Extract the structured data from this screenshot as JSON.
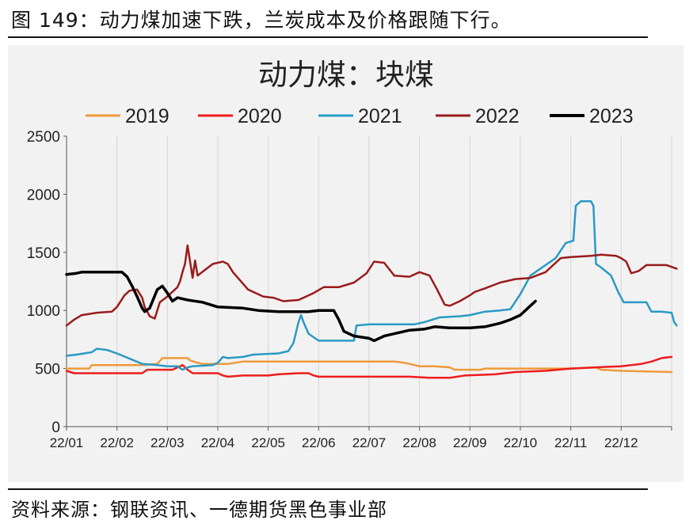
{
  "caption": "图 149：动力煤加速下跌，兰炭成本及价格跟随下行。",
  "source": "资料来源：钢联资讯、一德期货黑色事业部",
  "chart_data": {
    "type": "line",
    "title": "动力煤：块煤",
    "x_ticks": [
      "22/01",
      "22/02",
      "22/03",
      "22/04",
      "22/05",
      "22/06",
      "22/07",
      "22/08",
      "22/09",
      "22/10",
      "22/11",
      "22/12"
    ],
    "x_domain": [
      0,
      12
    ],
    "y_ticks": [
      "0",
      "500",
      "1000",
      "1500",
      "2000",
      "2500"
    ],
    "ylim": [
      0,
      2500
    ],
    "grid": "vertical",
    "legend_position": "top",
    "series": [
      {
        "name": "2019",
        "color": "#ee9a3a",
        "width": 2.5,
        "points": [
          [
            0,
            500
          ],
          [
            0.45,
            500
          ],
          [
            0.5,
            530
          ],
          [
            1.5,
            530
          ],
          [
            1.8,
            540
          ],
          [
            1.9,
            590
          ],
          [
            2.4,
            590
          ],
          [
            2.45,
            570
          ],
          [
            2.6,
            550
          ],
          [
            2.7,
            540
          ],
          [
            3.2,
            540
          ],
          [
            3.5,
            560
          ],
          [
            5.0,
            560
          ],
          [
            6.5,
            560
          ],
          [
            6.7,
            550
          ],
          [
            6.8,
            540
          ],
          [
            7.0,
            520
          ],
          [
            7.3,
            520
          ],
          [
            7.6,
            510
          ],
          [
            7.7,
            490
          ],
          [
            8.2,
            490
          ],
          [
            8.3,
            500
          ],
          [
            9.5,
            500
          ],
          [
            10.0,
            500
          ],
          [
            10.5,
            510
          ],
          [
            10.6,
            490
          ],
          [
            11.0,
            480
          ],
          [
            12.0,
            470
          ]
        ]
      },
      {
        "name": "2020",
        "color": "#ee1c1c",
        "width": 2.5,
        "points": [
          [
            0,
            480
          ],
          [
            0.15,
            460
          ],
          [
            1.0,
            460
          ],
          [
            1.5,
            460
          ],
          [
            1.6,
            490
          ],
          [
            2.1,
            490
          ],
          [
            2.3,
            530
          ],
          [
            2.4,
            490
          ],
          [
            2.5,
            460
          ],
          [
            3.0,
            460
          ],
          [
            3.1,
            440
          ],
          [
            3.2,
            430
          ],
          [
            3.5,
            440
          ],
          [
            4.0,
            440
          ],
          [
            4.2,
            450
          ],
          [
            4.6,
            460
          ],
          [
            4.8,
            460
          ],
          [
            4.9,
            440
          ],
          [
            5.0,
            430
          ],
          [
            6.0,
            430
          ],
          [
            6.5,
            430
          ],
          [
            6.8,
            430
          ],
          [
            7.2,
            420
          ],
          [
            7.6,
            420
          ],
          [
            7.9,
            440
          ],
          [
            8.5,
            450
          ],
          [
            8.9,
            470
          ],
          [
            9.5,
            480
          ],
          [
            10.0,
            500
          ],
          [
            10.5,
            510
          ],
          [
            11.0,
            520
          ],
          [
            11.2,
            530
          ],
          [
            11.4,
            540
          ],
          [
            11.6,
            560
          ],
          [
            11.8,
            590
          ],
          [
            12.0,
            600
          ]
        ]
      },
      {
        "name": "2021",
        "color": "#2a9ac4",
        "width": 2.5,
        "points": [
          [
            0,
            610
          ],
          [
            0.2,
            620
          ],
          [
            0.5,
            640
          ],
          [
            0.6,
            670
          ],
          [
            0.8,
            660
          ],
          [
            1.0,
            630
          ],
          [
            1.5,
            540
          ],
          [
            1.8,
            530
          ],
          [
            2.0,
            520
          ],
          [
            2.2,
            520
          ],
          [
            2.3,
            490
          ],
          [
            2.4,
            510
          ],
          [
            2.5,
            520
          ],
          [
            2.9,
            530
          ],
          [
            3.0,
            550
          ],
          [
            3.1,
            600
          ],
          [
            3.2,
            590
          ],
          [
            3.5,
            600
          ],
          [
            3.7,
            620
          ],
          [
            4.2,
            630
          ],
          [
            4.4,
            650
          ],
          [
            4.5,
            720
          ],
          [
            4.6,
            900
          ],
          [
            4.65,
            960
          ],
          [
            4.7,
            900
          ],
          [
            4.8,
            800
          ],
          [
            5.0,
            740
          ],
          [
            5.2,
            740
          ],
          [
            5.7,
            740
          ],
          [
            5.75,
            870
          ],
          [
            6.0,
            880
          ],
          [
            6.5,
            880
          ],
          [
            6.9,
            880
          ],
          [
            7.1,
            900
          ],
          [
            7.4,
            940
          ],
          [
            7.8,
            950
          ],
          [
            8.0,
            960
          ],
          [
            8.3,
            990
          ],
          [
            8.6,
            1000
          ],
          [
            8.8,
            1010
          ],
          [
            9.0,
            1140
          ],
          [
            9.2,
            1300
          ],
          [
            9.5,
            1390
          ],
          [
            9.7,
            1450
          ],
          [
            9.9,
            1580
          ],
          [
            10.05,
            1600
          ],
          [
            10.1,
            1900
          ],
          [
            10.2,
            1940
          ],
          [
            10.4,
            1940
          ],
          [
            10.45,
            1900
          ],
          [
            10.5,
            1400
          ],
          [
            10.6,
            1370
          ],
          [
            10.8,
            1300
          ],
          [
            10.95,
            1150
          ],
          [
            11.05,
            1070
          ],
          [
            11.5,
            1070
          ],
          [
            11.6,
            990
          ],
          [
            11.8,
            990
          ],
          [
            12.0,
            980
          ],
          [
            12.05,
            900
          ],
          [
            12.1,
            870
          ]
        ]
      },
      {
        "name": "2022",
        "color": "#9b1b1b",
        "width": 2.5,
        "points": [
          [
            0,
            870
          ],
          [
            0.15,
            920
          ],
          [
            0.3,
            960
          ],
          [
            0.6,
            980
          ],
          [
            0.9,
            990
          ],
          [
            1.0,
            1030
          ],
          [
            1.15,
            1130
          ],
          [
            1.25,
            1170
          ],
          [
            1.4,
            1180
          ],
          [
            1.5,
            1110
          ],
          [
            1.55,
            1030
          ],
          [
            1.65,
            950
          ],
          [
            1.75,
            930
          ],
          [
            1.85,
            1070
          ],
          [
            2.0,
            1120
          ],
          [
            2.2,
            1200
          ],
          [
            2.25,
            1250
          ],
          [
            2.3,
            1330
          ],
          [
            2.35,
            1400
          ],
          [
            2.4,
            1560
          ],
          [
            2.45,
            1420
          ],
          [
            2.5,
            1280
          ],
          [
            2.55,
            1430
          ],
          [
            2.6,
            1300
          ],
          [
            2.75,
            1350
          ],
          [
            2.9,
            1400
          ],
          [
            3.1,
            1420
          ],
          [
            3.2,
            1400
          ],
          [
            3.3,
            1330
          ],
          [
            3.6,
            1180
          ],
          [
            3.9,
            1120
          ],
          [
            4.1,
            1110
          ],
          [
            4.3,
            1080
          ],
          [
            4.6,
            1090
          ],
          [
            4.9,
            1150
          ],
          [
            5.1,
            1200
          ],
          [
            5.4,
            1200
          ],
          [
            5.7,
            1240
          ],
          [
            5.95,
            1320
          ],
          [
            6.1,
            1420
          ],
          [
            6.3,
            1410
          ],
          [
            6.5,
            1300
          ],
          [
            6.8,
            1290
          ],
          [
            7.0,
            1330
          ],
          [
            7.2,
            1300
          ],
          [
            7.35,
            1180
          ],
          [
            7.5,
            1050
          ],
          [
            7.6,
            1040
          ],
          [
            7.8,
            1080
          ],
          [
            8.0,
            1130
          ],
          [
            8.1,
            1160
          ],
          [
            8.3,
            1190
          ],
          [
            8.6,
            1240
          ],
          [
            8.9,
            1270
          ],
          [
            9.2,
            1280
          ],
          [
            9.5,
            1330
          ],
          [
            9.7,
            1410
          ],
          [
            9.8,
            1450
          ],
          [
            10.0,
            1460
          ],
          [
            10.4,
            1470
          ],
          [
            10.6,
            1480
          ],
          [
            10.9,
            1470
          ],
          [
            11.0,
            1450
          ],
          [
            11.1,
            1420
          ],
          [
            11.2,
            1320
          ],
          [
            11.35,
            1340
          ],
          [
            11.5,
            1390
          ],
          [
            11.9,
            1390
          ],
          [
            12.1,
            1360
          ]
        ]
      },
      {
        "name": "2023",
        "color": "#000000",
        "width": 3.5,
        "points": [
          [
            0,
            1310
          ],
          [
            0.2,
            1320
          ],
          [
            0.3,
            1330
          ],
          [
            0.8,
            1330
          ],
          [
            1.1,
            1330
          ],
          [
            1.2,
            1290
          ],
          [
            1.3,
            1210
          ],
          [
            1.4,
            1120
          ],
          [
            1.5,
            1020
          ],
          [
            1.55,
            990
          ],
          [
            1.65,
            1020
          ],
          [
            1.8,
            1180
          ],
          [
            1.9,
            1210
          ],
          [
            2.0,
            1150
          ],
          [
            2.1,
            1080
          ],
          [
            2.2,
            1110
          ],
          [
            2.4,
            1090
          ],
          [
            2.7,
            1070
          ],
          [
            3.0,
            1030
          ],
          [
            3.5,
            1020
          ],
          [
            3.8,
            1000
          ],
          [
            4.2,
            990
          ],
          [
            4.8,
            990
          ],
          [
            5.0,
            1000
          ],
          [
            5.3,
            1000
          ],
          [
            5.4,
            920
          ],
          [
            5.5,
            820
          ],
          [
            5.7,
            780
          ],
          [
            6.0,
            760
          ],
          [
            6.1,
            740
          ],
          [
            6.3,
            780
          ],
          [
            6.5,
            800
          ],
          [
            6.8,
            830
          ],
          [
            7.1,
            840
          ],
          [
            7.3,
            860
          ],
          [
            7.6,
            850
          ],
          [
            8.0,
            850
          ],
          [
            8.3,
            860
          ],
          [
            8.6,
            890
          ],
          [
            8.8,
            920
          ],
          [
            9.0,
            960
          ],
          [
            9.2,
            1040
          ],
          [
            9.3,
            1080
          ]
        ]
      }
    ]
  }
}
